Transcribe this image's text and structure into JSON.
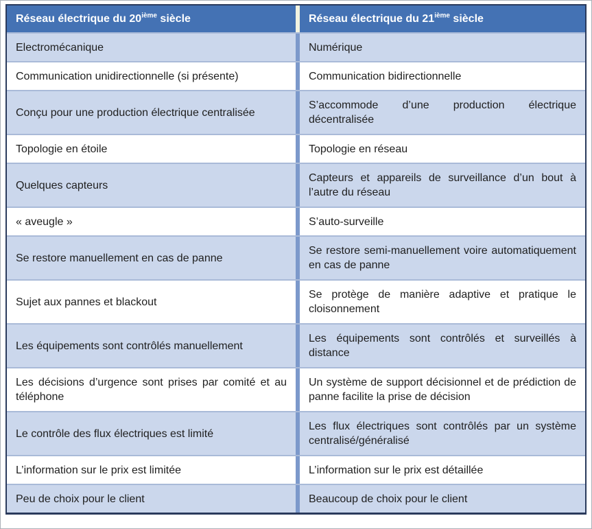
{
  "table": {
    "header": {
      "left": {
        "base": "Réseau électrique du 20",
        "sup": "ième",
        "rest": " siècle"
      },
      "right": {
        "base": "Réseau électrique du 21",
        "sup": "ième",
        "rest": " siècle"
      }
    },
    "rows": [
      {
        "left": "Electromécanique",
        "right": "Numérique"
      },
      {
        "left": "Communication unidirectionnelle (si présente)",
        "right": "Communication bidirectionnelle"
      },
      {
        "left": "Conçu pour une production électrique centralisée",
        "right": "S’accommode d’une production électrique décentralisée"
      },
      {
        "left": "Topologie en étoile",
        "right": "Topologie en réseau"
      },
      {
        "left": "Quelques capteurs",
        "right": "Capteurs et appareils de surveillance d’un bout à l’autre du réseau"
      },
      {
        "left": "« aveugle »",
        "right": "S’auto-surveille"
      },
      {
        "left": "Se restore manuellement en cas de panne",
        "right": "Se restore semi-manuellement voire automatiquement en cas de panne"
      },
      {
        "left": "Sujet aux pannes et blackout",
        "right": "Se protège de manière adaptive et pratique le cloisonnement"
      },
      {
        "left": "Les équipements sont contrôlés manuellement",
        "right": "Les équipements sont contrôlés et surveillés à distance"
      },
      {
        "left": "Les décisions d’urgence sont prises par comité et au téléphone",
        "right": "Un système de support décisionnel et de prédiction de panne facilite la prise de décision"
      },
      {
        "left": "Le contrôle des flux électriques est limité",
        "right": "Les flux électriques sont contrôlés par un système centralisé/généralisé"
      },
      {
        "left": "L’information sur le prix est limitée",
        "right": "L’information sur le prix est détaillée"
      },
      {
        "left": "Peu de choix pour le client",
        "right": "Beaucoup de choix pour le client"
      }
    ]
  },
  "colors": {
    "header_bg": "#4472B4",
    "header_text": "#FFFFFF",
    "alt_row_bg": "#CBD7EC",
    "white_row_bg": "#FFFFFF",
    "body_text": "#1F1F1F",
    "column_divider": "#7C99CB",
    "header_column_divider": "#F2F3E0",
    "row_border": "#A9BAD8",
    "outer_border": "#2A3A5C"
  }
}
